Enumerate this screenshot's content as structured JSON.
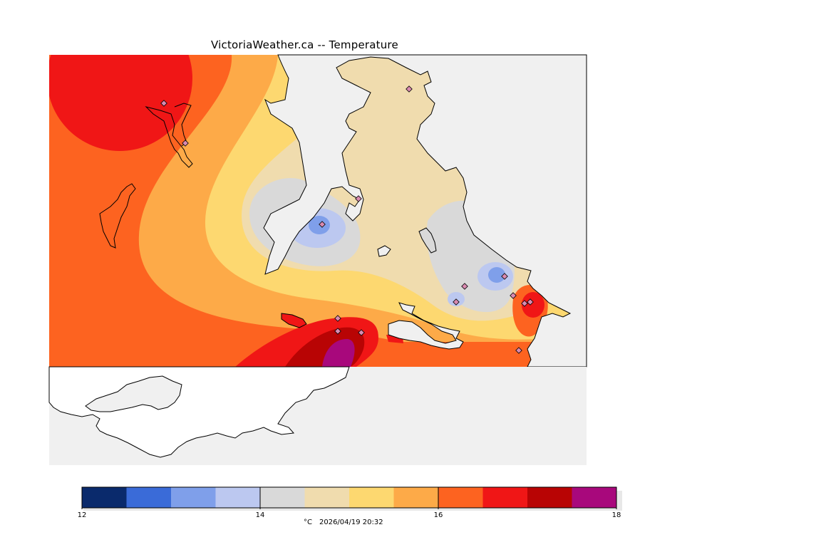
{
  "title": "VictoriaWeather.ca -- Temperature",
  "legend": {
    "unit": "°C",
    "timestamp": "2026/04/19 20:32",
    "tick_labels": [
      "12",
      "14",
      "16",
      "18"
    ],
    "colors": [
      "#0a2a6c",
      "#3a6bd8",
      "#7f9fea",
      "#bcc8f0",
      "#d9d9d9",
      "#f0dcae",
      "#fdd870",
      "#fdaa48",
      "#fd6320",
      "#f01616",
      "#b80404",
      "#a8087c"
    ]
  },
  "colors": {
    "land_background": "#f0f0f0",
    "water_outside": "#ffffff",
    "coastline": "#000000",
    "station_marker": "#d98ab0"
  }
}
